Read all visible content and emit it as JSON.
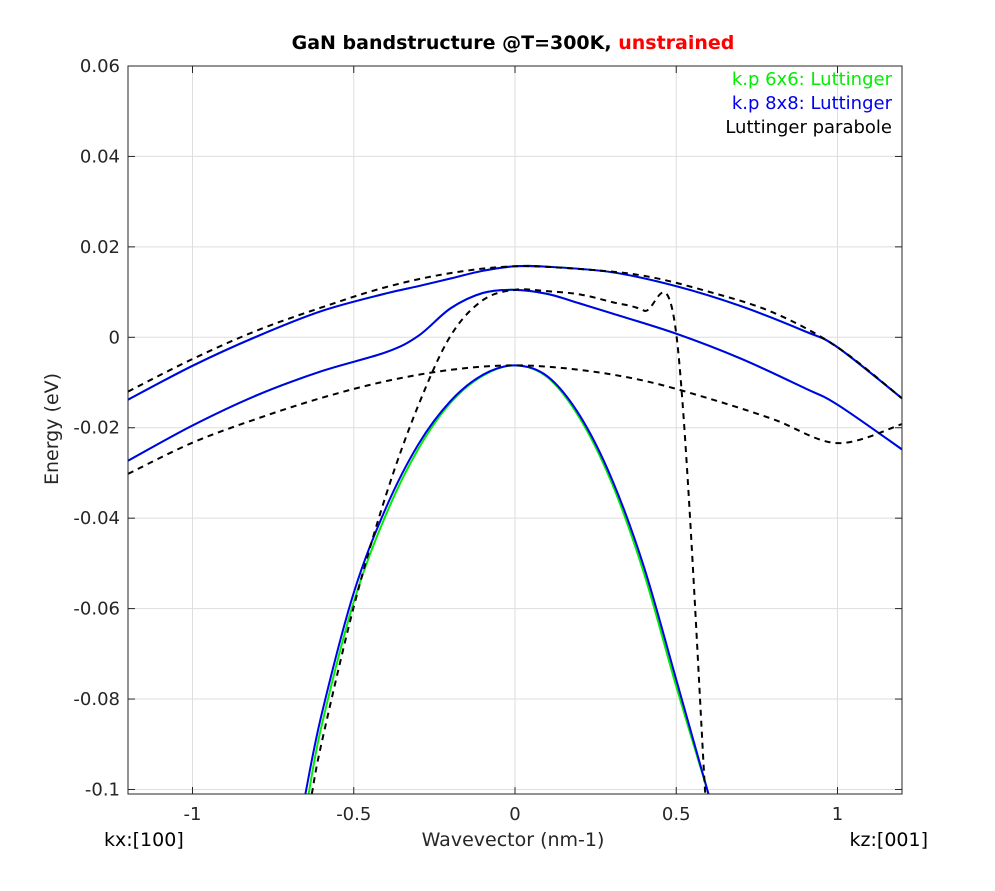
{
  "chart_data": {
    "type": "line",
    "title": "GaN bandstructure @T=300K,",
    "title_highlight": "unstrained",
    "title_highlight_color": "#ff0000",
    "xlabel": "Wavevector (nm-1)",
    "ylabel": "Energy (eV)",
    "x_left_label": "kx:[100]",
    "x_right_label": "kz:[001]",
    "xlim": [
      -1.2,
      1.2
    ],
    "ylim": [
      -0.101,
      0.06
    ],
    "xticks": [
      -1,
      -0.5,
      0,
      0.5,
      1
    ],
    "xtick_labels": [
      "-1",
      "-0.5",
      "0",
      "0.5",
      "1"
    ],
    "yticks": [
      0.06,
      0.04,
      0.02,
      0,
      -0.02,
      -0.04,
      -0.06,
      -0.08,
      -0.1
    ],
    "ytick_labels": [
      "0.06",
      "0.04",
      "0.02",
      "0",
      "-0.02",
      "-0.04",
      "-0.06",
      "-0.08",
      "-0.1"
    ],
    "grid": true,
    "legend_position": "top-right",
    "legend": [
      {
        "label": "k.p 6x6: Luttinger",
        "color": "#00ee00"
      },
      {
        "label": "k.p 8x8: Luttinger",
        "color": "#0000ee"
      },
      {
        "label": "Luttinger parabole",
        "color": "#000000"
      }
    ],
    "series": [
      {
        "group": "k.p 6x6: Luttinger",
        "color": "#00ee00",
        "style": "solid",
        "x": [
          -1.2,
          -1.0,
          -0.8,
          -0.6,
          -0.4,
          -0.3,
          -0.2,
          -0.1,
          0,
          0.1,
          0.3,
          0.5,
          0.7,
          0.9,
          1.0,
          1.2
        ],
        "y": [
          -0.0138,
          -0.0063,
          0.0002,
          0.0058,
          0.0097,
          0.0113,
          0.013,
          0.0147,
          0.0157,
          0.0156,
          0.0144,
          0.0113,
          0.0069,
          0.0013,
          -0.0022,
          -0.0135
        ]
      },
      {
        "group": "k.p 6x6: Luttinger",
        "color": "#00ee00",
        "style": "solid",
        "x": [
          -1.2,
          -1.0,
          -0.8,
          -0.6,
          -0.4,
          -0.3,
          -0.2,
          -0.1,
          0,
          0.1,
          0.2,
          0.3,
          0.5,
          0.7,
          0.9,
          1.0,
          1.2
        ],
        "y": [
          -0.0273,
          -0.0195,
          -0.0128,
          -0.0075,
          -0.0033,
          0.0003,
          0.0064,
          0.0098,
          0.0105,
          0.0096,
          0.0075,
          0.0053,
          0.0008,
          -0.0047,
          -0.0113,
          -0.0149,
          -0.0248
        ]
      },
      {
        "group": "k.p 6x6: Luttinger",
        "color": "#00ee00",
        "style": "solid",
        "x": [
          -0.64,
          -0.6,
          -0.5,
          -0.4,
          -0.3,
          -0.2,
          -0.1,
          0,
          0.1,
          0.2,
          0.3,
          0.4,
          0.5,
          0.6
        ],
        "y": [
          -0.101,
          -0.086,
          -0.0585,
          -0.0392,
          -0.0247,
          -0.0145,
          -0.0085,
          -0.0062,
          -0.0088,
          -0.0178,
          -0.0322,
          -0.0522,
          -0.0772,
          -0.101
        ]
      },
      {
        "group": "k.p 8x8: Luttinger",
        "color": "#0000ee",
        "style": "solid",
        "x": [
          -1.2,
          -1.0,
          -0.8,
          -0.6,
          -0.4,
          -0.3,
          -0.2,
          -0.1,
          0,
          0.1,
          0.3,
          0.5,
          0.7,
          0.9,
          1.0,
          1.2
        ],
        "y": [
          -0.0138,
          -0.0063,
          0.0002,
          0.0058,
          0.0097,
          0.0113,
          0.013,
          0.0147,
          0.0157,
          0.0156,
          0.0144,
          0.0113,
          0.0069,
          0.0013,
          -0.0022,
          -0.0135
        ]
      },
      {
        "group": "k.p 8x8: Luttinger",
        "color": "#0000ee",
        "style": "solid",
        "x": [
          -1.2,
          -1.0,
          -0.8,
          -0.6,
          -0.4,
          -0.3,
          -0.2,
          -0.1,
          0,
          0.1,
          0.2,
          0.3,
          0.5,
          0.7,
          0.9,
          1.0,
          1.2
        ],
        "y": [
          -0.0273,
          -0.0195,
          -0.0128,
          -0.0075,
          -0.0033,
          0.0003,
          0.0064,
          0.0098,
          0.0105,
          0.0096,
          0.0075,
          0.0053,
          0.0008,
          -0.0047,
          -0.0113,
          -0.0149,
          -0.0248
        ]
      },
      {
        "group": "k.p 8x8: Luttinger",
        "color": "#0000ee",
        "style": "solid",
        "x": [
          -0.65,
          -0.6,
          -0.5,
          -0.4,
          -0.3,
          -0.2,
          -0.1,
          0,
          0.1,
          0.2,
          0.3,
          0.4,
          0.5,
          0.6
        ],
        "y": [
          -0.101,
          -0.0835,
          -0.0565,
          -0.0377,
          -0.0237,
          -0.0141,
          -0.0083,
          -0.0062,
          -0.0086,
          -0.0172,
          -0.0313,
          -0.0508,
          -0.0757,
          -0.101
        ]
      },
      {
        "group": "Luttinger parabole",
        "color": "#000000",
        "style": "dashed",
        "x": [
          -1.2,
          -1.0,
          -0.8,
          -0.6,
          -0.4,
          -0.2,
          0,
          0.2,
          0.4,
          0.6,
          0.8,
          1.0,
          1.2
        ],
        "y": [
          -0.012,
          -0.0048,
          0.0015,
          0.0066,
          0.0111,
          0.0142,
          0.0157,
          0.0151,
          0.0136,
          0.0101,
          0.0055,
          -0.0022,
          -0.0135
        ]
      },
      {
        "group": "Luttinger parabole",
        "color": "#000000",
        "style": "dashed",
        "x": [
          -1.2,
          -1.0,
          -0.8,
          -0.6,
          -0.4,
          -0.2,
          0,
          0.2,
          0.4,
          0.6,
          0.8,
          1.0,
          1.2
        ],
        "y": [
          -0.0302,
          -0.0233,
          -0.018,
          -0.0134,
          -0.0097,
          -0.0072,
          -0.0062,
          -0.0072,
          -0.0096,
          -0.0135,
          -0.0181,
          -0.0234,
          -0.0192
        ]
      },
      {
        "group": "Luttinger parabole",
        "color": "#000000",
        "style": "dashed",
        "x": [
          -0.63,
          -0.6,
          -0.5,
          -0.4,
          -0.3,
          -0.2,
          -0.1,
          0,
          0.1,
          0.2,
          0.3,
          0.4,
          0.5,
          0.59
        ],
        "y": [
          -0.101,
          -0.0898,
          -0.0596,
          -0.0349,
          -0.0151,
          0.0003,
          0.0082,
          0.0105,
          0.0102,
          0.0095,
          0.0078,
          0.0059,
          0.0008,
          -0.101
        ]
      }
    ]
  }
}
